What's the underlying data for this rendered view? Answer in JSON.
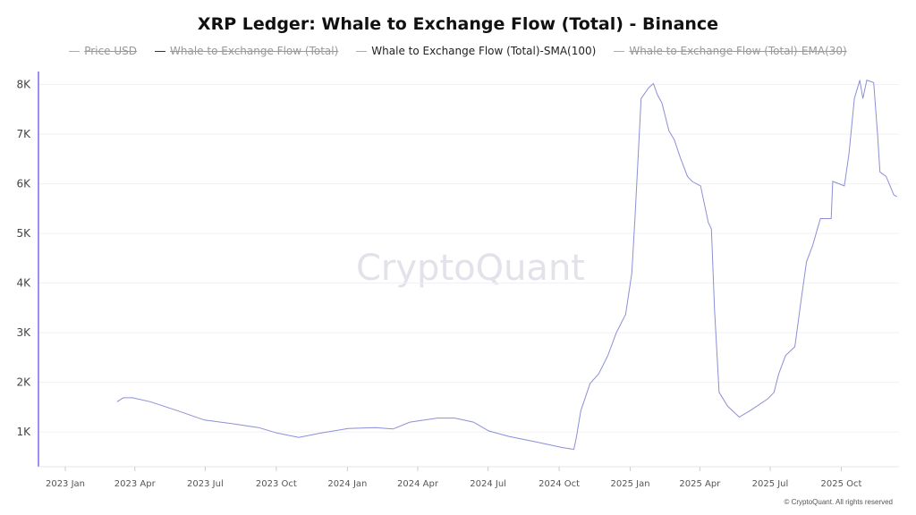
{
  "chart_data": {
    "type": "line",
    "title": "XRP Ledger: Whale to Exchange Flow (Total) - Binance",
    "legend": [
      {
        "name": "Price USD",
        "visible": false
      },
      {
        "name": "Whale to Exchange Flow (Total)",
        "visible": false
      },
      {
        "name": "Whale to Exchange Flow (Total)-SMA(100)",
        "visible": true
      },
      {
        "name": "Whale to Exchange Flow (Total)-EMA(30)",
        "visible": false
      }
    ],
    "legend_position": "top",
    "y_ticks": [
      "1K",
      "2K",
      "3K",
      "4K",
      "5K",
      "6K",
      "7K",
      "8K"
    ],
    "y_tick_values": [
      1000,
      2000,
      3000,
      4000,
      5000,
      6000,
      7000,
      8000
    ],
    "ylim": [
      300,
      8300
    ],
    "x_ticks": [
      "2023 Jan",
      "2023 Apr",
      "2023 Jul",
      "2023 Oct",
      "2024 Jan",
      "2024 Apr",
      "2024 Jul",
      "2024 Oct",
      "2025 Jan",
      "2025 Apr",
      "2025 Jul",
      "2025 Oct"
    ],
    "x_tick_dates": [
      "2023-01-01",
      "2023-04-01",
      "2023-07-01",
      "2023-10-01",
      "2024-01-01",
      "2024-04-01",
      "2024-07-01",
      "2024-10-01",
      "2025-01-01",
      "2025-04-01",
      "2025-07-01",
      "2025-10-01"
    ],
    "grid": true,
    "series_color": "#8c8fd6",
    "axis_color": "#7b6cf0",
    "series": [
      {
        "name": "Whale to Exchange Flow (Total)-SMA(100)",
        "x": [
          "2023-03-09",
          "2023-03-17",
          "2023-03-29",
          "2023-04-21",
          "2023-05-26",
          "2023-06-30",
          "2023-08-04",
          "2023-09-08",
          "2023-10-02",
          "2023-10-30",
          "2023-11-28",
          "2024-01-02",
          "2024-02-06",
          "2024-02-29",
          "2024-03-22",
          "2024-04-26",
          "2024-05-19",
          "2024-06-12",
          "2024-07-02",
          "2024-07-28",
          "2024-09-01",
          "2024-10-04",
          "2024-10-20",
          "2024-10-23",
          "2024-10-29",
          "2024-11-10",
          "2024-11-21",
          "2024-12-03",
          "2024-12-14",
          "2024-12-26",
          "2025-01-03",
          "2025-01-07",
          "2025-01-12",
          "2025-01-15",
          "2025-01-25",
          "2025-01-31",
          "2025-02-05",
          "2025-02-11",
          "2025-02-20",
          "2025-02-27",
          "2025-03-07",
          "2025-03-16",
          "2025-03-22",
          "2025-04-02",
          "2025-04-12",
          "2025-04-16",
          "2025-04-20",
          "2025-04-26",
          "2025-05-07",
          "2025-05-22",
          "2025-06-05",
          "2025-06-28",
          "2025-07-06",
          "2025-07-12",
          "2025-07-21",
          "2025-08-02",
          "2025-08-10",
          "2025-08-17",
          "2025-08-25",
          "2025-09-04",
          "2025-09-18",
          "2025-09-20",
          "2025-10-05",
          "2025-10-11",
          "2025-10-18",
          "2025-10-25",
          "2025-10-29",
          "2025-11-03",
          "2025-11-12",
          "2025-11-17",
          "2025-11-20",
          "2025-11-28",
          "2025-12-08",
          "2025-12-12"
        ],
        "y": [
          1610,
          1690,
          1690,
          1610,
          1430,
          1240,
          1170,
          1090,
          980,
          890,
          980,
          1070,
          1090,
          1060,
          1200,
          1280,
          1280,
          1200,
          1020,
          910,
          800,
          690,
          650,
          870,
          1430,
          1980,
          2170,
          2540,
          3000,
          3370,
          4200,
          5300,
          6800,
          7720,
          7940,
          8020,
          7800,
          7630,
          7070,
          6890,
          6520,
          6150,
          6050,
          5960,
          5220,
          5090,
          3460,
          1800,
          1520,
          1300,
          1430,
          1670,
          1800,
          2170,
          2540,
          2720,
          3650,
          4430,
          4760,
          5300,
          5300,
          6050,
          5960,
          6610,
          7720,
          8090,
          7720,
          8090,
          8040,
          6980,
          6240,
          6150,
          5780,
          5740
        ]
      }
    ]
  },
  "watermark": "CryptoQuant",
  "footer": "© CryptoQuant. All rights reserved"
}
